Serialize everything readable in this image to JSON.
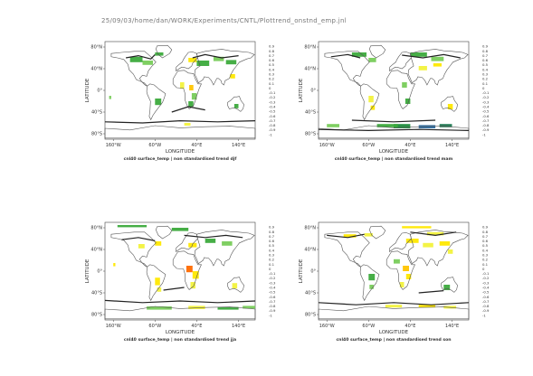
{
  "page": {
    "title": "25/09/03/home/dan/WORK/Experiments/CNTL/Plottrend_onstnd_emp.jnl"
  },
  "colors": {
    "colorbar": [
      "#8a0000",
      "#d40000",
      "#ff2a00",
      "#ff6a00",
      "#ff9a00",
      "#ffc400",
      "#ffe800",
      "#f2f23c",
      "#dff07a",
      "#c8f0a0",
      "#ffffff",
      "#a8e08c",
      "#78cc5a",
      "#3caa3c",
      "#1e8c3c",
      "#1e7850",
      "#2a6aa0",
      "#3a4ad0",
      "#6a3ae0",
      "#a03af0",
      "#e03af0"
    ],
    "land_outline": "#555555",
    "contour": "#222222"
  },
  "chart_data": [
    {
      "type": "heatmap",
      "title": "cnl40 surface_temp | non standardised  trend djf",
      "xlabel": "LONGITUDE",
      "ylabel": "LATITUDE",
      "xticks": [
        "160°W",
        "60°W",
        "40°E",
        "140°E"
      ],
      "yticks": [
        "80°N",
        "40°N",
        "0°",
        "40°S",
        "80°S"
      ],
      "colorbar_labels": [
        "0.9",
        "0.8",
        "0.7",
        "0.6",
        "0.5",
        "0.4",
        "0.3",
        "0.2",
        "0.1",
        "0",
        "-0.1",
        "-0.2",
        "-0.3",
        "-0.4",
        "-0.5",
        "-0.6",
        "-0.7",
        "-0.8",
        "-0.9",
        "-1"
      ]
    },
    {
      "type": "heatmap",
      "title": "cnl40 surface_temp | non standardised  trend mam",
      "xlabel": "LONGITUDE",
      "ylabel": "LATITUDE",
      "xticks": [
        "160°W",
        "60°W",
        "40°E",
        "140°E"
      ],
      "yticks": [
        "80°N",
        "40°N",
        "0°",
        "40°S",
        "80°S"
      ],
      "colorbar_labels": [
        "0.9",
        "0.8",
        "0.7",
        "0.6",
        "0.5",
        "0.4",
        "0.3",
        "0.2",
        "0.1",
        "0",
        "-0.1",
        "-0.2",
        "-0.3",
        "-0.4",
        "-0.5",
        "-0.6",
        "-0.7",
        "-0.8",
        "-0.9",
        "-1"
      ]
    },
    {
      "type": "heatmap",
      "title": "cnl40 surface_temp | non standardised  trend jja",
      "xlabel": "LONGITUDE",
      "ylabel": "LATITUDE",
      "xticks": [
        "160°W",
        "60°W",
        "40°E",
        "140°E"
      ],
      "yticks": [
        "80°N",
        "40°N",
        "0°",
        "40°S",
        "80°S"
      ],
      "colorbar_labels": [
        "0.9",
        "0.8",
        "0.7",
        "0.6",
        "0.5",
        "0.4",
        "0.3",
        "0.2",
        "0.1",
        "0",
        "-0.1",
        "-0.2",
        "-0.3",
        "-0.4",
        "-0.5",
        "-0.6",
        "-0.7",
        "-0.8",
        "-0.9",
        "-1"
      ]
    },
    {
      "type": "heatmap",
      "title": "cnl40 surface_temp | non standardised  trend son",
      "xlabel": "LONGITUDE",
      "ylabel": "LATITUDE",
      "xticks": [
        "160°W",
        "60°W",
        "40°E",
        "140°E"
      ],
      "yticks": [
        "80°N",
        "40°N",
        "0°",
        "40°S",
        "80°S"
      ],
      "colorbar_labels": [
        "0.9",
        "0.8",
        "0.7",
        "0.6",
        "0.5",
        "0.4",
        "0.3",
        "0.2",
        "0.1",
        "0",
        "-0.1",
        "-0.2",
        "-0.3",
        "-0.4",
        "-0.5",
        "-0.6",
        "-0.7",
        "-0.8",
        "-0.9",
        "-1"
      ]
    }
  ]
}
